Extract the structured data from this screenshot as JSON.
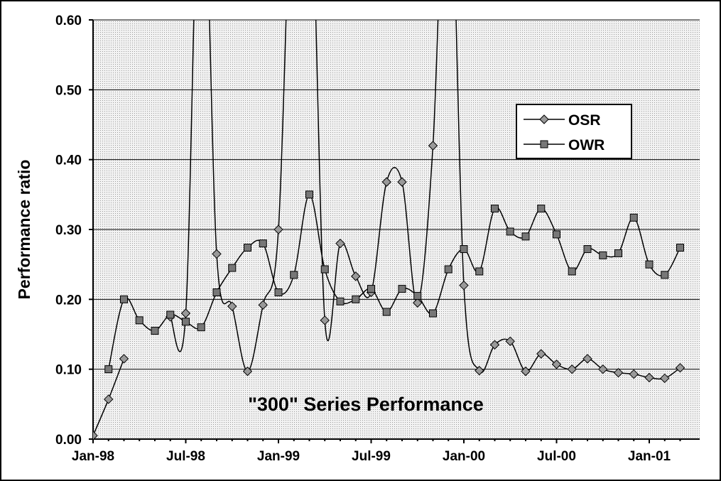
{
  "chart_data": {
    "type": "line",
    "y_label": "Performance ratio",
    "annotation": "\"300\" Series Performance",
    "categories": [
      "Jan-98",
      null,
      null,
      null,
      null,
      null,
      "Jul-98",
      null,
      null,
      null,
      null,
      null,
      "Jan-99",
      null,
      null,
      null,
      null,
      null,
      "Jul-99",
      null,
      null,
      null,
      null,
      null,
      "Jan-00",
      null,
      null,
      null,
      null,
      null,
      "Jul-00",
      null,
      null,
      null,
      null,
      null,
      "Jan-01",
      null,
      null
    ],
    "series": [
      {
        "name": "OSR",
        "color": "#999999",
        "marker": "diamond",
        "values": [
          0.005,
          0.057,
          0.115,
          null,
          null,
          0.175,
          0.18,
          0.9,
          0.265,
          0.19,
          0.097,
          0.192,
          0.3,
          0.9,
          0.9,
          0.17,
          0.28,
          0.233,
          0.21,
          0.368,
          0.368,
          0.195,
          0.42,
          0.9,
          0.22,
          0.098,
          0.135,
          0.14,
          0.097,
          0.122,
          0.107,
          0.1,
          0.115,
          0.1,
          0.095,
          0.093,
          0.088,
          0.087,
          0.102
        ]
      },
      {
        "name": "OWR",
        "color": "#777777",
        "marker": "square",
        "values": [
          null,
          0.1,
          0.2,
          0.17,
          0.155,
          0.178,
          0.168,
          0.16,
          0.21,
          0.245,
          0.274,
          0.28,
          0.21,
          0.235,
          0.35,
          0.243,
          0.197,
          0.2,
          0.215,
          0.182,
          0.215,
          0.205,
          0.18,
          0.243,
          0.272,
          0.24,
          0.33,
          0.297,
          0.29,
          0.33,
          0.293,
          0.24,
          0.272,
          0.263,
          0.266,
          0.317,
          0.25,
          0.235,
          0.274
        ]
      }
    ],
    "ylim": [
      0,
      0.6
    ],
    "yticks": [
      {
        "value": 0,
        "label": "0.00"
      },
      {
        "value": 0.1,
        "label": "0.10"
      },
      {
        "value": 0.2,
        "label": "0.20"
      },
      {
        "value": 0.3,
        "label": "0.30"
      },
      {
        "value": 0.4,
        "label": "0.40"
      },
      {
        "value": 0.5,
        "label": "0.50"
      },
      {
        "value": 0.6,
        "label": "0.60"
      }
    ],
    "grid": true,
    "legend": "upper right"
  }
}
